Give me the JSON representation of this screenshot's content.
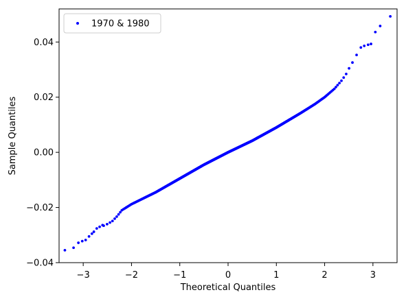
{
  "chart_data": {
    "type": "scatter",
    "title": "",
    "xlabel": "Theoretical Quantiles",
    "ylabel": "Sample Quantiles",
    "xlim": [
      -3.5,
      3.5
    ],
    "ylim": [
      -0.04,
      0.052
    ],
    "xticks": [
      -3,
      -2,
      -1,
      0,
      1,
      2,
      3
    ],
    "yticks": [
      -0.04,
      -0.02,
      0.0,
      0.02,
      0.04
    ],
    "xtick_labels": [
      "−3",
      "−2",
      "−1",
      "0",
      "1",
      "2",
      "3"
    ],
    "ytick_labels": [
      "−0.04",
      "−0.02",
      "0.00",
      "0.02",
      "0.04"
    ],
    "grid": false,
    "legend": {
      "position": "top-left",
      "entries": [
        "1970 & 1980"
      ]
    },
    "series": [
      {
        "name": "1970 & 1980",
        "color": "#0000ff",
        "marker": "dot",
        "curve": [
          [
            -3.4,
            -0.0355
          ],
          [
            -3.2,
            -0.0345
          ],
          [
            -3.1,
            -0.0328
          ],
          [
            -3.0,
            -0.0322
          ],
          [
            -2.9,
            -0.0318
          ],
          [
            -2.85,
            -0.0305
          ],
          [
            -2.8,
            -0.0295
          ],
          [
            -2.75,
            -0.0288
          ],
          [
            -2.7,
            -0.0275
          ],
          [
            -2.6,
            -0.0268
          ],
          [
            -2.5,
            -0.026
          ],
          [
            -2.4,
            -0.025
          ],
          [
            -2.3,
            -0.0232
          ],
          [
            -2.2,
            -0.021
          ],
          [
            -2.0,
            -0.0188
          ],
          [
            -1.5,
            -0.0145
          ],
          [
            -1.0,
            -0.0095
          ],
          [
            -0.5,
            -0.0045
          ],
          [
            0.0,
            0.0
          ],
          [
            0.5,
            0.0042
          ],
          [
            1.0,
            0.009
          ],
          [
            1.5,
            0.0142
          ],
          [
            1.8,
            0.0175
          ],
          [
            2.0,
            0.02
          ],
          [
            2.2,
            0.023
          ],
          [
            2.35,
            0.026
          ],
          [
            2.45,
            0.0285
          ],
          [
            2.55,
            0.032
          ],
          [
            2.62,
            0.0335
          ],
          [
            2.7,
            0.037
          ],
          [
            2.8,
            0.0385
          ],
          [
            2.9,
            0.039
          ],
          [
            3.0,
            0.0395
          ],
          [
            3.05,
            0.0435
          ],
          [
            3.15,
            0.0458
          ],
          [
            3.35,
            0.0492
          ]
        ],
        "n_points": 900,
        "tail_points": [
          [
            -3.38,
            -0.0355
          ],
          [
            -3.2,
            -0.0346
          ],
          [
            -3.1,
            -0.0328
          ],
          [
            -3.02,
            -0.0322
          ],
          [
            -2.95,
            -0.0318
          ],
          [
            -2.88,
            -0.0305
          ],
          [
            -2.82,
            -0.0295
          ],
          [
            -2.78,
            -0.0288
          ],
          [
            -2.72,
            -0.0276
          ],
          [
            -2.66,
            -0.027
          ],
          [
            -2.6,
            -0.0264
          ],
          [
            2.75,
            0.038
          ],
          [
            2.82,
            0.0386
          ],
          [
            2.9,
            0.039
          ],
          [
            2.96,
            0.0393
          ],
          [
            3.05,
            0.0436
          ],
          [
            3.15,
            0.0458
          ],
          [
            3.36,
            0.0493
          ]
        ]
      }
    ]
  }
}
